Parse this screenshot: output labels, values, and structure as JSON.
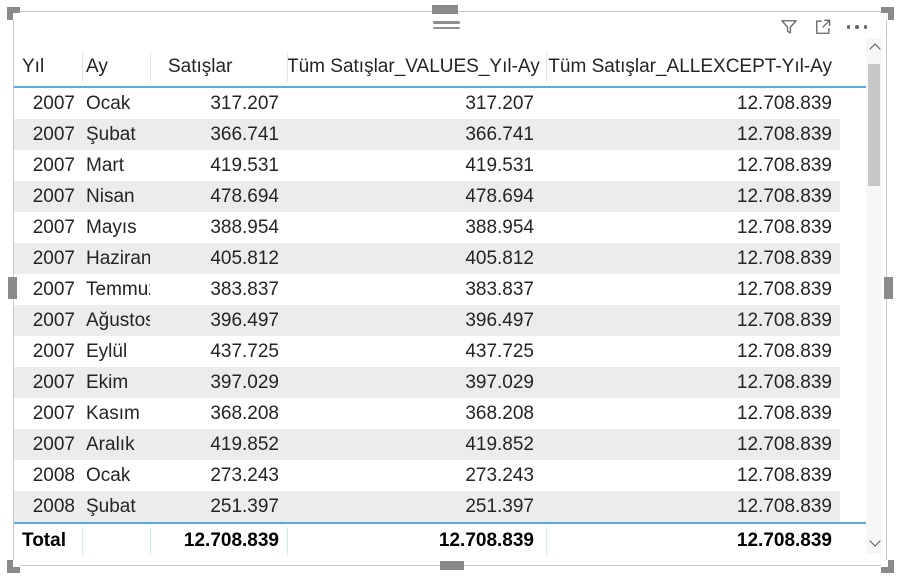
{
  "visual": {
    "toolbar": {
      "filter_icon": "filter-funnel",
      "focus_icon": "focus-mode",
      "more_icon": "more-options"
    },
    "scrollbar": {
      "up": "chevron-up",
      "down": "chevron-down"
    }
  },
  "table": {
    "columns": [
      {
        "label": "Yıl"
      },
      {
        "label": "Ay"
      },
      {
        "label": "Satışlar"
      },
      {
        "label": "Tüm Satışlar_VALUES_Yıl-Ay"
      },
      {
        "label": "Tüm Satışlar_ALLEXCEPT-Yıl-Ay"
      }
    ],
    "rows": [
      [
        "2007",
        "Ocak",
        "317.207",
        "317.207",
        "12.708.839"
      ],
      [
        "2007",
        "Şubat",
        "366.741",
        "366.741",
        "12.708.839"
      ],
      [
        "2007",
        "Mart",
        "419.531",
        "419.531",
        "12.708.839"
      ],
      [
        "2007",
        "Nisan",
        "478.694",
        "478.694",
        "12.708.839"
      ],
      [
        "2007",
        "Mayıs",
        "388.954",
        "388.954",
        "12.708.839"
      ],
      [
        "2007",
        "Haziran",
        "405.812",
        "405.812",
        "12.708.839"
      ],
      [
        "2007",
        "Temmuz",
        "383.837",
        "383.837",
        "12.708.839"
      ],
      [
        "2007",
        "Ağustos",
        "396.497",
        "396.497",
        "12.708.839"
      ],
      [
        "2007",
        "Eylül",
        "437.725",
        "437.725",
        "12.708.839"
      ],
      [
        "2007",
        "Ekim",
        "397.029",
        "397.029",
        "12.708.839"
      ],
      [
        "2007",
        "Kasım",
        "368.208",
        "368.208",
        "12.708.839"
      ],
      [
        "2007",
        "Aralık",
        "419.852",
        "419.852",
        "12.708.839"
      ],
      [
        "2008",
        "Ocak",
        "273.243",
        "273.243",
        "12.708.839"
      ],
      [
        "2008",
        "Şubat",
        "251.397",
        "251.397",
        "12.708.839"
      ]
    ],
    "total": {
      "label": "Total",
      "sales": "12.708.839",
      "values": "12.708.839",
      "allexcept": "12.708.839"
    }
  },
  "colors": {
    "accent_line": "#58acde",
    "row_stripe": "#ececec",
    "border": "#c9c9c9",
    "handle": "#8a8a8a",
    "icon": "#666666",
    "text": "#252423"
  }
}
